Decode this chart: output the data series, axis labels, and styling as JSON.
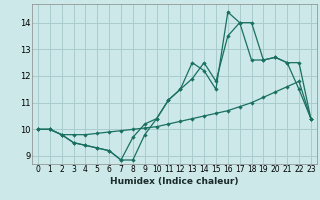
{
  "xlabel": "Humidex (Indice chaleur)",
  "xlim": [
    -0.5,
    23.5
  ],
  "ylim": [
    8.7,
    14.7
  ],
  "yticks": [
    9,
    10,
    11,
    12,
    13,
    14
  ],
  "xticks": [
    0,
    1,
    2,
    3,
    4,
    5,
    6,
    7,
    8,
    9,
    10,
    11,
    12,
    13,
    14,
    15,
    16,
    17,
    18,
    19,
    20,
    21,
    22,
    23
  ],
  "bg_color": "#cce8e8",
  "grid_color": "#aacccc",
  "line_color": "#1a7060",
  "line1": [
    10.0,
    10.0,
    9.8,
    9.5,
    9.4,
    9.3,
    9.2,
    8.85,
    8.85,
    9.8,
    10.4,
    11.1,
    11.5,
    12.5,
    12.2,
    11.5,
    14.4,
    14.0,
    14.0,
    12.6,
    12.7,
    12.5,
    11.5,
    10.4
  ],
  "line2": [
    10.0,
    10.0,
    9.8,
    9.5,
    9.4,
    9.3,
    9.2,
    8.85,
    9.7,
    10.2,
    10.4,
    11.1,
    11.5,
    11.9,
    12.5,
    11.8,
    13.5,
    14.0,
    12.6,
    12.6,
    12.7,
    12.5,
    12.5,
    10.4
  ],
  "line3": [
    10.0,
    10.0,
    9.8,
    9.8,
    9.8,
    9.85,
    9.9,
    9.95,
    10.0,
    10.05,
    10.1,
    10.2,
    10.3,
    10.4,
    10.5,
    10.6,
    10.7,
    10.85,
    11.0,
    11.2,
    11.4,
    11.6,
    11.8,
    10.4
  ]
}
